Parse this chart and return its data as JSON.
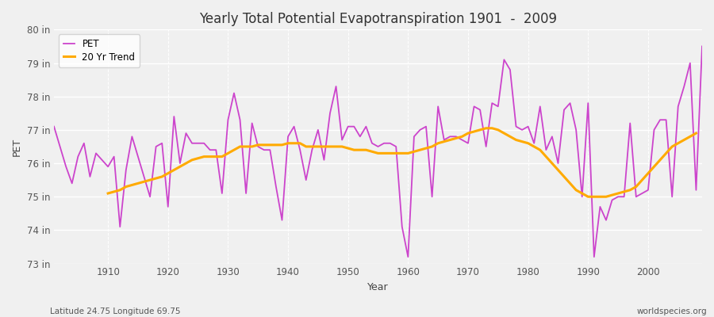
{
  "title": "Yearly Total Potential Evapotranspiration 1901  -  2009",
  "xlabel": "Year",
  "ylabel": "PET",
  "footnote_left": "Latitude 24.75 Longitude 69.75",
  "footnote_right": "worldspecies.org",
  "pet_color": "#cc44cc",
  "trend_color": "#ffaa00",
  "bg_color": "#f0f0f0",
  "ylim": [
    73,
    80
  ],
  "xlim": [
    1901,
    2009
  ],
  "yticks": [
    73,
    74,
    75,
    76,
    77,
    78,
    79,
    80
  ],
  "ytick_labels": [
    "73 in",
    "74 in",
    "75 in",
    "76 in",
    "77 in",
    "78 in",
    "79 in",
    "80 in"
  ],
  "years": [
    1901,
    1902,
    1903,
    1904,
    1905,
    1906,
    1907,
    1908,
    1909,
    1910,
    1911,
    1912,
    1913,
    1914,
    1915,
    1916,
    1917,
    1918,
    1919,
    1920,
    1921,
    1922,
    1923,
    1924,
    1925,
    1926,
    1927,
    1928,
    1929,
    1930,
    1931,
    1932,
    1933,
    1934,
    1935,
    1936,
    1937,
    1938,
    1939,
    1940,
    1941,
    1942,
    1943,
    1944,
    1945,
    1946,
    1947,
    1948,
    1949,
    1950,
    1951,
    1952,
    1953,
    1954,
    1955,
    1956,
    1957,
    1958,
    1959,
    1960,
    1961,
    1962,
    1963,
    1964,
    1965,
    1966,
    1967,
    1968,
    1969,
    1970,
    1971,
    1972,
    1973,
    1974,
    1975,
    1976,
    1977,
    1978,
    1979,
    1980,
    1981,
    1982,
    1983,
    1984,
    1985,
    1986,
    1987,
    1988,
    1989,
    1990,
    1991,
    1992,
    1993,
    1994,
    1995,
    1996,
    1997,
    1998,
    1999,
    2000,
    2001,
    2002,
    2003,
    2004,
    2005,
    2006,
    2007,
    2008,
    2009
  ],
  "pet_values": [
    77.1,
    76.5,
    75.9,
    75.4,
    76.2,
    76.6,
    75.6,
    76.3,
    76.1,
    75.9,
    76.2,
    74.1,
    75.8,
    76.8,
    76.2,
    75.6,
    75.0,
    76.5,
    76.6,
    74.7,
    77.4,
    76.0,
    76.9,
    76.6,
    76.6,
    76.6,
    76.4,
    76.4,
    75.1,
    77.3,
    78.1,
    77.3,
    75.1,
    77.2,
    76.5,
    76.4,
    76.4,
    75.3,
    74.3,
    76.8,
    77.1,
    76.4,
    75.5,
    76.4,
    77.0,
    76.1,
    77.5,
    78.3,
    76.7,
    77.1,
    77.1,
    76.8,
    77.1,
    76.6,
    76.5,
    76.6,
    76.6,
    76.5,
    74.1,
    73.2,
    76.8,
    77.0,
    77.1,
    75.0,
    77.7,
    76.7,
    76.8,
    76.8,
    76.7,
    76.6,
    77.7,
    77.6,
    76.5,
    77.8,
    77.7,
    79.1,
    78.8,
    77.1,
    77.0,
    77.1,
    76.6,
    77.7,
    76.4,
    76.8,
    76.0,
    77.6,
    77.8,
    77.0,
    75.0,
    77.8,
    73.2,
    74.7,
    74.3,
    74.9,
    75.0,
    75.0,
    77.2,
    75.0,
    75.1,
    75.2,
    77.0,
    77.3,
    77.3,
    75.0,
    77.7,
    78.3,
    79.0,
    75.2,
    79.5
  ],
  "trend_values": [
    null,
    null,
    null,
    null,
    null,
    null,
    null,
    null,
    null,
    75.1,
    75.15,
    75.2,
    75.3,
    75.35,
    75.4,
    75.45,
    75.5,
    75.55,
    75.6,
    75.7,
    75.8,
    75.9,
    76.0,
    76.1,
    76.15,
    76.2,
    76.2,
    76.2,
    76.2,
    76.3,
    76.4,
    76.5,
    76.5,
    76.5,
    76.55,
    76.55,
    76.55,
    76.55,
    76.55,
    76.6,
    76.6,
    76.6,
    76.5,
    76.5,
    76.5,
    76.5,
    76.5,
    76.5,
    76.5,
    76.45,
    76.4,
    76.4,
    76.4,
    76.35,
    76.3,
    76.3,
    76.3,
    76.3,
    76.3,
    76.3,
    76.35,
    76.4,
    76.45,
    76.5,
    76.6,
    76.65,
    76.7,
    76.75,
    76.8,
    76.9,
    76.95,
    77.0,
    77.05,
    77.05,
    77.0,
    76.9,
    76.8,
    76.7,
    76.65,
    76.6,
    76.5,
    76.4,
    76.2,
    76.0,
    75.8,
    75.6,
    75.4,
    75.2,
    75.1,
    75.0,
    75.0,
    75.0,
    75.0,
    75.05,
    75.1,
    75.15,
    75.2,
    75.3,
    75.5,
    75.7,
    75.9,
    76.1,
    76.3,
    76.5,
    76.6,
    76.7,
    76.8,
    76.9,
    null
  ]
}
